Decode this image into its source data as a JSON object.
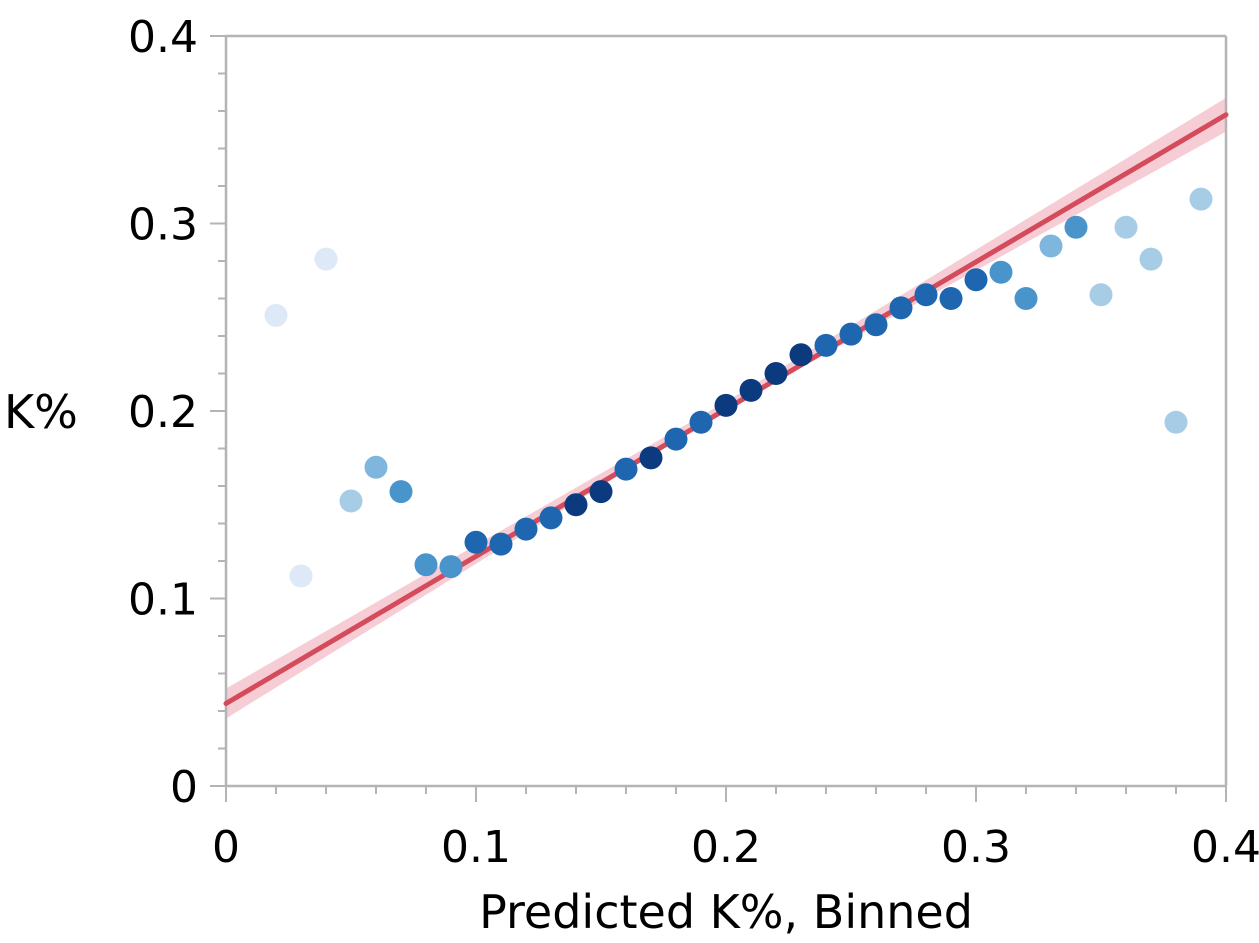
{
  "chart_data": {
    "type": "scatter",
    "xlabel": "Predicted K%, Binned",
    "ylabel": "K%",
    "xlim": [
      0,
      0.4
    ],
    "ylim": [
      0,
      0.4
    ],
    "x_ticks": [
      "0",
      "0.1",
      "0.2",
      "0.3",
      "0.4"
    ],
    "y_ticks": [
      "0",
      "0.1",
      "0.2",
      "0.3",
      "0.4"
    ],
    "grid": false,
    "legend": "none",
    "colors": {
      "point_darkest": "#0b3a7e",
      "point_dark": "#1e67b0",
      "point_medium": "#4a94cc",
      "point_light": "#7fb6dd",
      "point_lighter": "#a7cce6",
      "point_faint": "#dde9f6",
      "fit_line": "#d44b5c",
      "confidence_band": "#f6cdd5",
      "axis_frame": "#b4b4b4"
    },
    "fit_line": {
      "x": [
        0,
        0.4
      ],
      "y": [
        0.044,
        0.358
      ]
    },
    "confidence_band": {
      "x": [
        0,
        0.2,
        0.4
      ],
      "lower": [
        0.036,
        0.201,
        0.349
      ],
      "upper": [
        0.052,
        0.205,
        0.367
      ]
    },
    "series": [
      {
        "points": [
          {
            "x": 0.02,
            "y": 0.251,
            "shade": "point_faint"
          },
          {
            "x": 0.03,
            "y": 0.112,
            "shade": "point_faint"
          },
          {
            "x": 0.04,
            "y": 0.281,
            "shade": "point_faint"
          },
          {
            "x": 0.05,
            "y": 0.152,
            "shade": "point_lighter"
          },
          {
            "x": 0.06,
            "y": 0.17,
            "shade": "point_light"
          },
          {
            "x": 0.07,
            "y": 0.157,
            "shade": "point_medium"
          },
          {
            "x": 0.08,
            "y": 0.118,
            "shade": "point_medium"
          },
          {
            "x": 0.09,
            "y": 0.117,
            "shade": "point_medium"
          },
          {
            "x": 0.1,
            "y": 0.13,
            "shade": "point_dark"
          },
          {
            "x": 0.11,
            "y": 0.129,
            "shade": "point_dark"
          },
          {
            "x": 0.12,
            "y": 0.137,
            "shade": "point_dark"
          },
          {
            "x": 0.13,
            "y": 0.143,
            "shade": "point_dark"
          },
          {
            "x": 0.14,
            "y": 0.15,
            "shade": "point_darkest"
          },
          {
            "x": 0.15,
            "y": 0.157,
            "shade": "point_darkest"
          },
          {
            "x": 0.16,
            "y": 0.169,
            "shade": "point_dark"
          },
          {
            "x": 0.17,
            "y": 0.175,
            "shade": "point_darkest"
          },
          {
            "x": 0.18,
            "y": 0.185,
            "shade": "point_dark"
          },
          {
            "x": 0.19,
            "y": 0.194,
            "shade": "point_dark"
          },
          {
            "x": 0.2,
            "y": 0.203,
            "shade": "point_darkest"
          },
          {
            "x": 0.21,
            "y": 0.211,
            "shade": "point_darkest"
          },
          {
            "x": 0.22,
            "y": 0.22,
            "shade": "point_darkest"
          },
          {
            "x": 0.23,
            "y": 0.23,
            "shade": "point_darkest"
          },
          {
            "x": 0.24,
            "y": 0.235,
            "shade": "point_dark"
          },
          {
            "x": 0.25,
            "y": 0.241,
            "shade": "point_dark"
          },
          {
            "x": 0.26,
            "y": 0.246,
            "shade": "point_dark"
          },
          {
            "x": 0.27,
            "y": 0.255,
            "shade": "point_dark"
          },
          {
            "x": 0.28,
            "y": 0.262,
            "shade": "point_dark"
          },
          {
            "x": 0.29,
            "y": 0.26,
            "shade": "point_dark"
          },
          {
            "x": 0.3,
            "y": 0.27,
            "shade": "point_dark"
          },
          {
            "x": 0.31,
            "y": 0.274,
            "shade": "point_medium"
          },
          {
            "x": 0.32,
            "y": 0.26,
            "shade": "point_medium"
          },
          {
            "x": 0.33,
            "y": 0.288,
            "shade": "point_light"
          },
          {
            "x": 0.34,
            "y": 0.298,
            "shade": "point_medium"
          },
          {
            "x": 0.35,
            "y": 0.262,
            "shade": "point_lighter"
          },
          {
            "x": 0.36,
            "y": 0.298,
            "shade": "point_lighter"
          },
          {
            "x": 0.37,
            "y": 0.281,
            "shade": "point_lighter"
          },
          {
            "x": 0.38,
            "y": 0.194,
            "shade": "point_lighter"
          },
          {
            "x": 0.39,
            "y": 0.313,
            "shade": "point_lighter"
          }
        ]
      }
    ]
  }
}
